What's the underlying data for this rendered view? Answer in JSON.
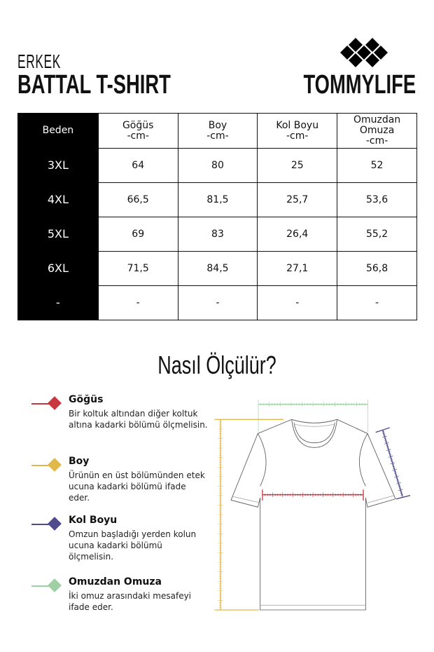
{
  "header": {
    "category": "ERKEK",
    "title": "BATTAL T-SHIRT",
    "brand": "TOMMYLIFE"
  },
  "table": {
    "columns": [
      "Beden",
      [
        "Göğüs",
        "-cm-"
      ],
      [
        "Boy",
        "-cm-"
      ],
      [
        "Kol Boyu",
        "-cm-"
      ],
      [
        "Omuzdan",
        "Omuza",
        "-cm-"
      ]
    ],
    "rows": [
      [
        "3XL",
        "64",
        "80",
        "25",
        "52"
      ],
      [
        "4XL",
        "66,5",
        "81,5",
        "25,7",
        "53,6"
      ],
      [
        "5XL",
        "69",
        "83",
        "26,4",
        "55,2"
      ],
      [
        "6XL",
        "71,5",
        "84,5",
        "27,1",
        "56,8"
      ],
      [
        "-",
        "-",
        "-",
        "-",
        "-"
      ]
    ]
  },
  "guide": {
    "title": "Nasıl Ölçülür?",
    "items": [
      {
        "name": "Göğüs",
        "desc": "Bir koltuk altından diğer koltuk altına kadarki bölümü ölçmelisin.",
        "color": "#c8373d"
      },
      {
        "name": "Boy",
        "desc": "Ürünün en üst bölümünden etek ucuna kadarki bölümü ifade eder.",
        "color": "#e0b94a"
      },
      {
        "name": "Kol Boyu",
        "desc": "Omzun başladığı yerden kolun ucuna kadarki bölümü ölçmelisin.",
        "color": "#4e4a8c"
      },
      {
        "name": "Omuzdan Omuza",
        "desc": "İki omuz arasındaki mesafeyi ifade eder.",
        "color": "#9fd0a3"
      }
    ]
  }
}
